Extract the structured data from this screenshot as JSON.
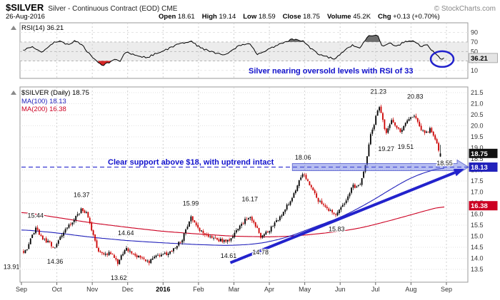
{
  "header": {
    "symbol": "$SILVER",
    "description": "Silver - Continuous Contract (EOD) CME",
    "copyright": "© StockCharts.com",
    "date": "26-Aug-2016",
    "quote": [
      {
        "label": "Open",
        "value": "18.61"
      },
      {
        "label": "High",
        "value": "19.14"
      },
      {
        "label": "Low",
        "value": "18.59"
      },
      {
        "label": "Close",
        "value": "18.75"
      },
      {
        "label": "Volume",
        "value": "45.2K"
      },
      {
        "label": "Chg",
        "value": "+0.13 (+0.70%)"
      }
    ]
  },
  "rsi_panel": {
    "label": "RSI(14) 36.21",
    "annotation": "Silver nearing oversold levels with RSI of 33"
  },
  "price_panel": {
    "label": "$SILVER (Daily) 18.75",
    "ma100_label": "MA(100) 18.13",
    "ma200_label": "MA(200) 16.38",
    "annotation": "Clear support above $18, with uptrend intact"
  },
  "chart_data": {
    "type": "candlestick",
    "title": "$SILVER Silver - Continuous Contract (EOD) CME, Daily, Sep 2015 - Sep 2016, with RSI(14) panel",
    "x_axis": {
      "labels": [
        "Sep",
        "Oct",
        "Nov",
        "Dec",
        "2016",
        "Feb",
        "Mar",
        "Apr",
        "May",
        "Jun",
        "Jul",
        "Aug",
        "Sep"
      ],
      "bold_label": "2016"
    },
    "price_axis": {
      "min": 13.5,
      "max": 21.5,
      "step": 0.5
    },
    "rsi_axis": {
      "ticks": [
        90,
        70,
        50,
        30,
        10
      ],
      "band": [
        30,
        70
      ]
    },
    "last": {
      "open": 18.61,
      "high": 19.14,
      "low": 18.59,
      "close": 18.75,
      "ma100": 18.13,
      "ma200": 16.38,
      "rsi": 36.21
    },
    "price_anchors": [
      [
        0.0,
        14.2
      ],
      [
        0.15,
        14.45
      ],
      [
        0.4,
        15.35
      ],
      [
        0.6,
        14.9
      ],
      [
        0.95,
        14.5
      ],
      [
        1.2,
        15.2
      ],
      [
        1.55,
        15.9
      ],
      [
        1.7,
        16.25
      ],
      [
        1.85,
        16.0
      ],
      [
        2.0,
        15.2
      ],
      [
        2.15,
        14.35
      ],
      [
        2.35,
        14.15
      ],
      [
        2.5,
        14.3
      ],
      [
        2.72,
        13.75
      ],
      [
        2.95,
        14.5
      ],
      [
        3.15,
        14.2
      ],
      [
        3.4,
        13.95
      ],
      [
        3.6,
        13.85
      ],
      [
        3.9,
        14.15
      ],
      [
        4.2,
        14.25
      ],
      [
        4.55,
        14.9
      ],
      [
        4.78,
        15.85
      ],
      [
        5.0,
        15.35
      ],
      [
        5.25,
        15.0
      ],
      [
        5.55,
        14.85
      ],
      [
        5.85,
        14.75
      ],
      [
        6.15,
        15.45
      ],
      [
        6.45,
        15.95
      ],
      [
        6.6,
        15.5
      ],
      [
        6.75,
        15.0
      ],
      [
        7.0,
        15.25
      ],
      [
        7.3,
        15.9
      ],
      [
        7.6,
        16.6
      ],
      [
        7.85,
        17.5
      ],
      [
        7.97,
        17.85
      ],
      [
        8.1,
        17.4
      ],
      [
        8.35,
        16.7
      ],
      [
        8.6,
        16.25
      ],
      [
        8.9,
        16.0
      ],
      [
        9.1,
        16.45
      ],
      [
        9.35,
        17.25
      ],
      [
        9.55,
        17.3
      ],
      [
        9.7,
        18.1
      ],
      [
        9.85,
        19.5
      ],
      [
        10.05,
        20.6
      ],
      [
        10.12,
        20.9
      ],
      [
        10.28,
        19.6
      ],
      [
        10.45,
        20.25
      ],
      [
        10.7,
        19.75
      ],
      [
        10.9,
        20.2
      ],
      [
        11.08,
        20.55
      ],
      [
        11.25,
        19.9
      ],
      [
        11.4,
        19.6
      ],
      [
        11.55,
        19.85
      ],
      [
        11.7,
        19.35
      ],
      [
        11.82,
        18.7
      ],
      [
        11.88,
        18.7
      ]
    ],
    "ma100_anchors": [
      [
        0,
        15.3
      ],
      [
        1,
        15.15
      ],
      [
        2,
        14.95
      ],
      [
        3,
        14.8
      ],
      [
        4,
        14.7
      ],
      [
        5,
        14.62
      ],
      [
        5.8,
        14.58
      ],
      [
        6.5,
        14.63
      ],
      [
        7,
        14.75
      ],
      [
        7.5,
        14.95
      ],
      [
        8,
        15.25
      ],
      [
        8.5,
        15.55
      ],
      [
        9,
        15.85
      ],
      [
        9.5,
        16.25
      ],
      [
        10,
        16.7
      ],
      [
        10.5,
        17.2
      ],
      [
        11,
        17.65
      ],
      [
        11.5,
        17.95
      ],
      [
        11.95,
        18.13
      ]
    ],
    "ma200_anchors": [
      [
        0,
        16.1
      ],
      [
        1,
        15.85
      ],
      [
        2,
        15.6
      ],
      [
        3,
        15.4
      ],
      [
        4,
        15.22
      ],
      [
        5,
        15.1
      ],
      [
        6,
        15.0
      ],
      [
        7,
        14.97
      ],
      [
        7.6,
        15.0
      ],
      [
        8.2,
        15.08
      ],
      [
        9,
        15.22
      ],
      [
        9.6,
        15.38
      ],
      [
        10.2,
        15.62
      ],
      [
        10.8,
        15.88
      ],
      [
        11.4,
        16.15
      ],
      [
        11.95,
        16.38
      ]
    ],
    "rsi_anchors": [
      [
        0.0,
        52
      ],
      [
        0.3,
        60
      ],
      [
        0.55,
        48
      ],
      [
        0.9,
        68
      ],
      [
        1.1,
        74
      ],
      [
        1.3,
        64
      ],
      [
        1.5,
        72
      ],
      [
        1.7,
        66
      ],
      [
        1.9,
        46
      ],
      [
        2.1,
        30
      ],
      [
        2.3,
        21
      ],
      [
        2.5,
        27
      ],
      [
        2.65,
        36
      ],
      [
        2.8,
        30
      ],
      [
        2.95,
        50
      ],
      [
        3.1,
        44
      ],
      [
        3.35,
        40
      ],
      [
        3.55,
        37
      ],
      [
        3.85,
        48
      ],
      [
        4.1,
        54
      ],
      [
        4.4,
        65
      ],
      [
        4.78,
        72
      ],
      [
        5.05,
        58
      ],
      [
        5.45,
        47
      ],
      [
        5.75,
        43
      ],
      [
        6.15,
        62
      ],
      [
        6.45,
        68
      ],
      [
        6.65,
        44
      ],
      [
        6.95,
        54
      ],
      [
        7.35,
        68
      ],
      [
        7.65,
        76
      ],
      [
        7.97,
        72
      ],
      [
        8.15,
        57
      ],
      [
        8.45,
        42
      ],
      [
        8.85,
        34
      ],
      [
        9.05,
        48
      ],
      [
        9.35,
        64
      ],
      [
        9.55,
        58
      ],
      [
        9.8,
        82
      ],
      [
        10.05,
        85
      ],
      [
        10.2,
        60
      ],
      [
        10.4,
        68
      ],
      [
        10.6,
        60
      ],
      [
        10.8,
        70
      ],
      [
        11.08,
        72
      ],
      [
        11.3,
        60
      ],
      [
        11.45,
        64
      ],
      [
        11.6,
        52
      ],
      [
        11.75,
        40
      ],
      [
        11.88,
        33
      ],
      [
        11.95,
        36.2
      ]
    ],
    "price_labels": [
      {
        "text": "13.91",
        "t": -0.28,
        "price": 13.61
      },
      {
        "text": "15.44",
        "t": 0.4,
        "price": 15.94
      },
      {
        "text": "14.36",
        "t": 0.95,
        "price": 13.86
      },
      {
        "text": "16.37",
        "t": 1.7,
        "price": 16.87
      },
      {
        "text": "13.62",
        "t": 2.75,
        "price": 13.12
      },
      {
        "text": "14.64",
        "t": 2.95,
        "price": 15.14
      },
      {
        "text": "15.99",
        "t": 4.78,
        "price": 16.49
      },
      {
        "text": "14.61",
        "t": 5.85,
        "price": 14.11
      },
      {
        "text": "16.17",
        "t": 6.45,
        "price": 16.67
      },
      {
        "text": "14.78",
        "t": 6.75,
        "price": 14.28
      },
      {
        "text": "18.06",
        "t": 7.95,
        "price": 18.56
      },
      {
        "text": "15.83",
        "t": 8.9,
        "price": 15.33
      },
      {
        "text": "21.23",
        "t": 10.08,
        "price": 21.55
      },
      {
        "text": "19.27",
        "t": 10.3,
        "price": 18.95
      },
      {
        "text": "19.51",
        "t": 10.85,
        "price": 19.05
      },
      {
        "text": "20.83",
        "t": 11.12,
        "price": 21.33
      },
      {
        "text": "18.55",
        "t": 11.95,
        "price": 18.3
      }
    ],
    "annotations": {
      "support_arrow": {
        "from_t": 7.65,
        "price": 18.13
      },
      "trend_arrow": {
        "from": [
          5.9,
          13.8
        ],
        "to": [
          12.5,
          18.05
        ]
      },
      "rsi_ellipse": {
        "t": 11.88,
        "value": 34,
        "rx": 16,
        "ry": 11
      }
    },
    "colors": {
      "up": "#000000",
      "down": "#cc0000",
      "ma100": "#2222bb",
      "ma200": "#cc0022",
      "annotation": "#1111cc",
      "arrow": "#2222cc",
      "overbought_fill": "#555555",
      "oversold_fill": "#cc0000"
    }
  }
}
